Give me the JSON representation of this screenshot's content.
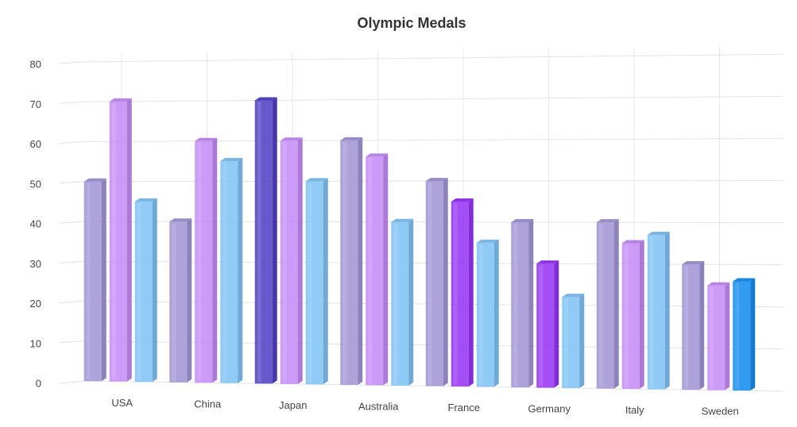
{
  "chart_data": {
    "type": "bar",
    "title": "Olympic Medals",
    "xlabel": "",
    "ylabel": "",
    "ylim": [
      0,
      80
    ],
    "yticks": [
      0,
      10,
      20,
      30,
      40,
      50,
      60,
      70,
      80
    ],
    "grid": true,
    "style": "3d-column",
    "categories": [
      "USA",
      "China",
      "Japan",
      "Australia",
      "France",
      "Germany",
      "Italy",
      "Sweden"
    ],
    "series": [
      {
        "values": [
          50,
          40,
          70,
          60,
          50,
          40,
          40,
          30
        ],
        "color": "#a79ad8",
        "highlight": {
          "index": 2,
          "color": "#5a4bc9"
        }
      },
      {
        "values": [
          70,
          60,
          60,
          56,
          45,
          30,
          35,
          25
        ],
        "color": "#c891f6",
        "highlight": {
          "index": 4,
          "color": "#9d3ef5"
        },
        "highlight2": {
          "index": 5,
          "color": "#9d3ef5"
        }
      },
      {
        "values": [
          45,
          55,
          50,
          40,
          35,
          22,
          37,
          26
        ],
        "color": "#87c5f5",
        "highlight": {
          "index": 7,
          "color": "#2193f0"
        }
      }
    ]
  }
}
